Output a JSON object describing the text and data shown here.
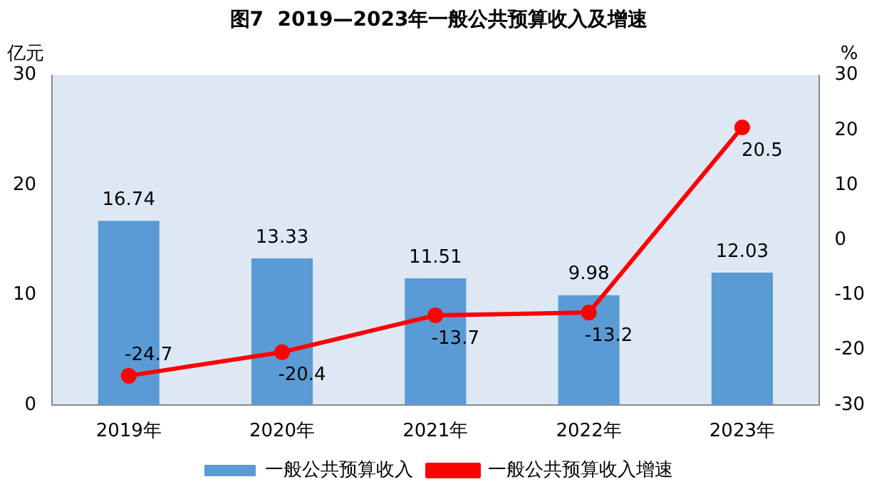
{
  "chart_data": {
    "type": "bar",
    "title": "图7  2019—2023年一般公共预算收入及增速",
    "ylabel": "亿元",
    "y2label": "%",
    "categories": [
      "2019年",
      "2020年",
      "2021年",
      "2022年",
      "2023年"
    ],
    "series": [
      {
        "name": "一般公共预算收入",
        "color": "#5b9bd5",
        "values": [
          16.74,
          13.33,
          11.51,
          9.98,
          12.03
        ]
      },
      {
        "name": "一般公共预算收入增速",
        "type": "line",
        "axis": "y2",
        "color": "#ff0000",
        "marker": "circle",
        "values": [
          -24.7,
          -20.4,
          -13.7,
          -13.2,
          20.5
        ]
      }
    ],
    "ylim": [
      0,
      30
    ],
    "yticks": [
      0,
      10,
      20,
      30
    ],
    "y2lim": [
      -30,
      30
    ],
    "y2ticks": [
      -30,
      -20,
      -10,
      0,
      10,
      20,
      30
    ],
    "grid": false,
    "legend": "bottom",
    "data_labels": true
  }
}
